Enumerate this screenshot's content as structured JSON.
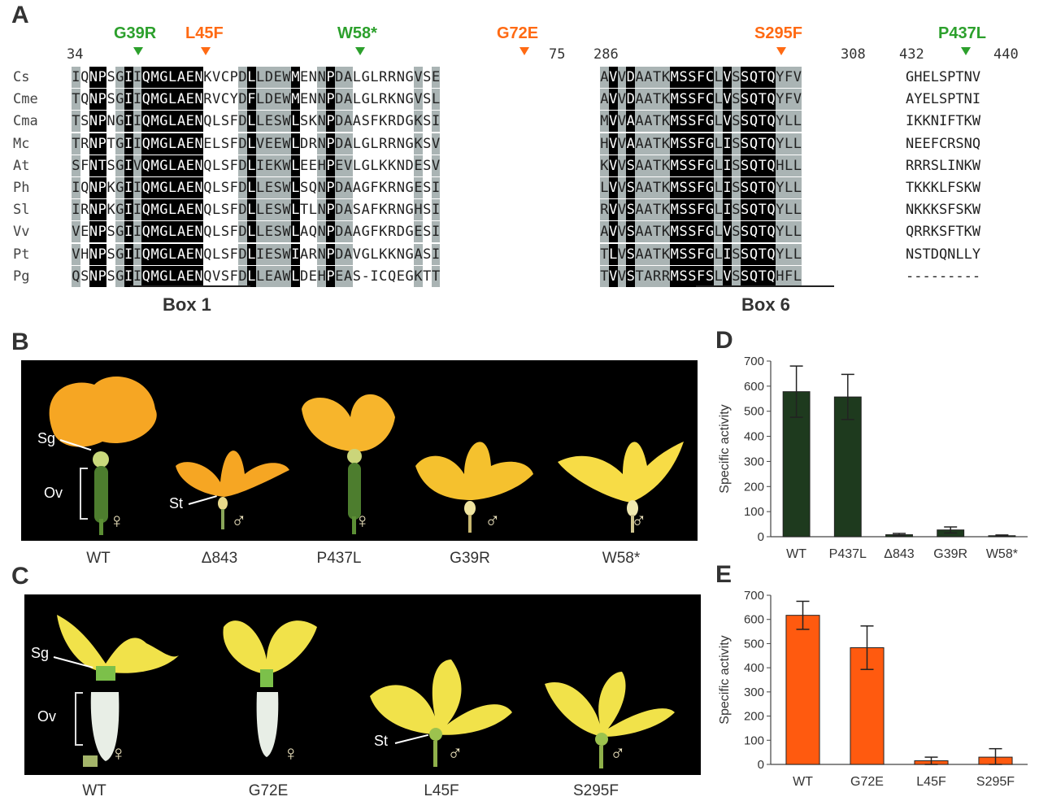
{
  "panels": {
    "A": "A",
    "B": "B",
    "C": "C",
    "D": "D",
    "E": "E"
  },
  "mutations": [
    {
      "label": "G39R",
      "color": "#2ca02c"
    },
    {
      "label": "L45F",
      "color": "#ff6a13"
    },
    {
      "label": "W58*",
      "color": "#2ca02c"
    },
    {
      "label": "G72E",
      "color": "#ff6a13"
    },
    {
      "label": "S295F",
      "color": "#ff6a13"
    },
    {
      "label": "P437L",
      "color": "#2ca02c"
    }
  ],
  "positions": {
    "p34": "34",
    "p75": "75",
    "p286": "286",
    "p308": "308",
    "p432": "432",
    "p440": "440"
  },
  "species": [
    "Cs",
    "Cme",
    "Cma",
    "Mc",
    "At",
    "Ph",
    "Sl",
    "Vv",
    "Pt",
    "Pg"
  ],
  "seq1": [
    "IQNPSGIIQMGLAENKVCPDLLDEWMENNPDALGLRRNGVSE",
    "TQNPSGIIQMGLAENRVCYDFLDEWMENNPDALGLRKNGVSL",
    "TSNPNGIIQMGLAENQLSFDLLESWLSKNPDAASFKRDGKSI",
    "TRNPTGIIQMGLAENELSFDLVEEWLDRNPDALGLRRNGKSV",
    "SFNTSGIVQMGLAENQLSFDLIEKWLEEHPEVLGLKKNDESV",
    "IQNPKGIIQMGLAENQLSFDLLESWLSQNPDAAGFKRNGESI",
    "IRNPKGIIQMGLAENQLSFDLLESWLTLNPDASAFKRNGHSI",
    "VENPSGIIQMGLAENQLSFDLLESWLAQNPDAAGFKRDGESI",
    "VHNPSGIIQMGLAENQLSFDLIESWIARNPDAVGLKKNGASI",
    "QSNPSGIIQMGLAENQVSFDLLEAWLDEHPEAS-ICQEGKTT"
  ],
  "seq2": [
    "AVVDAATKMSSFCLVSSQTQYFV",
    "AVVDAATKMSSFCLVSSQTQYFV",
    "MVVAAATKMSSFGLVSSQTQYLL",
    "HVVAAATKMSSFGLISSQTQYLL",
    "KVVSAATKMSSFGLISSQTQHLL",
    "LVVSAATKMSSFGLISSQTQYLL",
    "RVVSAATKMSSFGLISSQTQYLL",
    "AVVSAATKMSSFGLVSSQTQYLL",
    "TLVSAATKMSSFGLISSQTQYLL",
    "TVVSTARRMSSFSLVSSQTQHFL"
  ],
  "seq3": [
    "GHELSPTNV",
    "AYELSPTNI",
    "IKKNIFTKW",
    "NEEFCRSNQ",
    "RRRSLINKW",
    "TKKKLFSKW",
    "NKKKSFSKW",
    "QRRKSFTKW",
    "NSTDQNLLY",
    "---------"
  ],
  "boxes": {
    "box1": "Box 1",
    "box6": "Box 6"
  },
  "panelB": {
    "captions": [
      "WT",
      "Δ843",
      "P437L",
      "G39R",
      "W58*"
    ],
    "labels": {
      "sg": "Sg",
      "ov": "Ov",
      "st": "St"
    },
    "sexes": [
      "♀",
      "♂",
      "♀",
      "♂",
      "♂"
    ]
  },
  "panelC": {
    "captions": [
      "WT",
      "G72E",
      "L45F",
      "S295F"
    ],
    "labels": {
      "sg": "Sg",
      "ov": "Ov",
      "st": "St"
    },
    "sexes": [
      "♀",
      "♀",
      "♂",
      "♂"
    ]
  },
  "chart_data": [
    {
      "type": "bar",
      "panel": "D",
      "categories": [
        "WT",
        "P437L",
        "Δ843",
        "G39R",
        "W58*"
      ],
      "values": [
        578,
        557,
        8,
        27,
        4
      ],
      "errors": [
        102,
        90,
        5,
        12,
        3
      ],
      "ylabel": "Specific activity",
      "ylim": [
        0,
        700
      ],
      "yticks": [
        0,
        100,
        200,
        300,
        400,
        500,
        600,
        700
      ],
      "color": "#1e3a1e"
    },
    {
      "type": "bar",
      "panel": "E",
      "categories": [
        "WT",
        "G72E",
        "L45F",
        "S295F"
      ],
      "values": [
        617,
        483,
        15,
        30
      ],
      "errors": [
        58,
        90,
        15,
        35
      ],
      "ylabel": "Specific activity",
      "ylim": [
        0,
        700
      ],
      "yticks": [
        0,
        100,
        200,
        300,
        400,
        500,
        600,
        700
      ],
      "color": "#ff5a0f"
    }
  ]
}
